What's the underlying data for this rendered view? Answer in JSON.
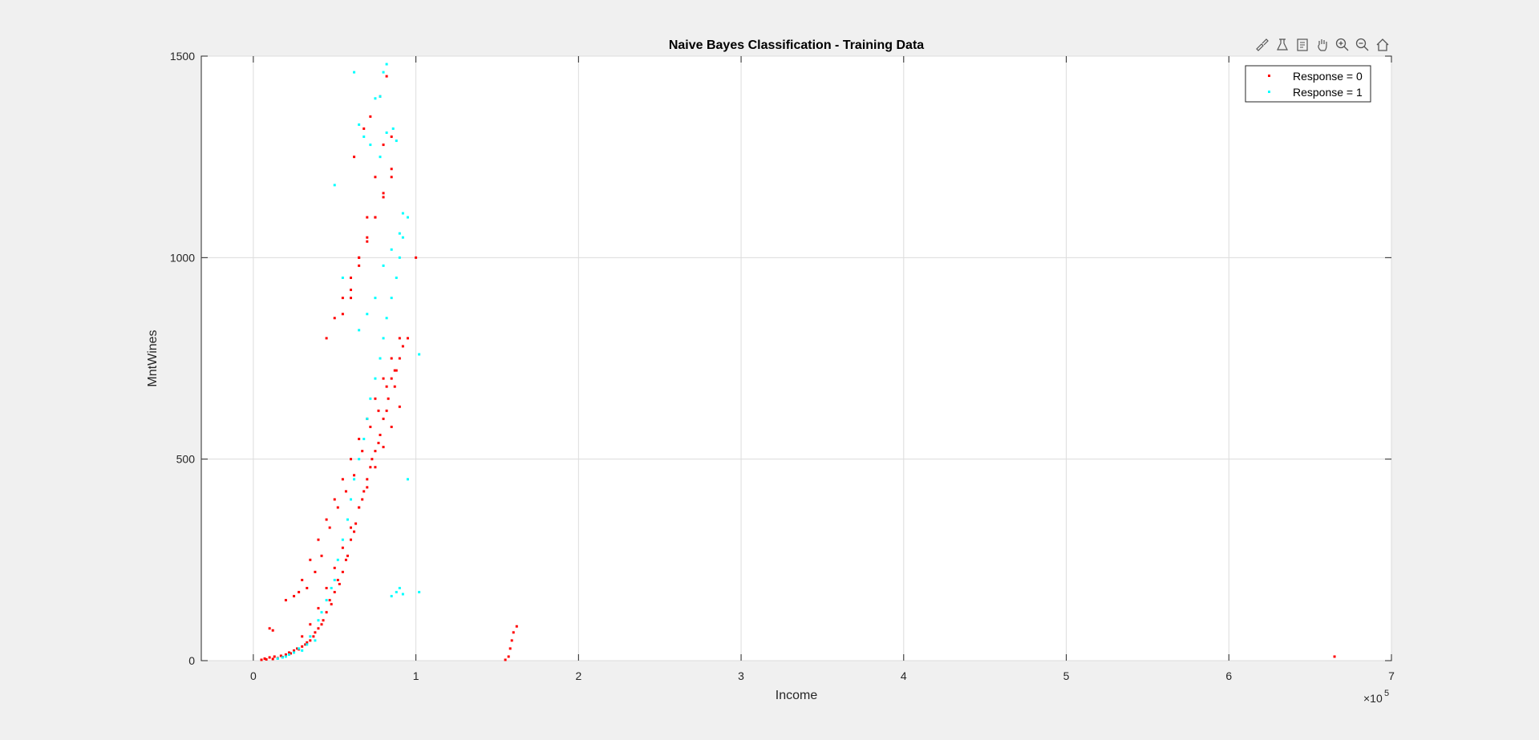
{
  "toolbar": {
    "icons": [
      "brush-icon",
      "data-tips-icon",
      "restore-view-icon",
      "pan-icon",
      "zoom-in-icon",
      "zoom-out-icon",
      "home-icon"
    ]
  },
  "chart_data": {
    "type": "scatter",
    "title": "Naive Bayes Classification - Training Data",
    "xlabel": "Income",
    "ylabel": "MntWines",
    "x_exponent_label": "×10",
    "x_exponent": "5",
    "xlim": [
      -0.32,
      7.0
    ],
    "ylim": [
      0,
      1500
    ],
    "x_scale_note": "x values shown in units of 10^5",
    "xticks": [
      0,
      1,
      2,
      3,
      4,
      5,
      6,
      7
    ],
    "xtick_labels": [
      "0",
      "1",
      "2",
      "3",
      "4",
      "5",
      "6",
      "7"
    ],
    "yticks": [
      0,
      500,
      1000,
      1500
    ],
    "ytick_labels": [
      "0",
      "500",
      "1000",
      "1500"
    ],
    "grid": true,
    "legend_position": "top-right",
    "series": [
      {
        "name": "Response = 0",
        "color": "#ff0000",
        "x": [
          0.05,
          0.07,
          0.08,
          0.1,
          0.12,
          0.13,
          0.15,
          0.17,
          0.18,
          0.2,
          0.22,
          0.23,
          0.25,
          0.27,
          0.28,
          0.3,
          0.32,
          0.33,
          0.35,
          0.37,
          0.38,
          0.4,
          0.42,
          0.43,
          0.45,
          0.47,
          0.48,
          0.5,
          0.52,
          0.53,
          0.55,
          0.57,
          0.58,
          0.6,
          0.62,
          0.63,
          0.65,
          0.67,
          0.68,
          0.7,
          0.72,
          0.73,
          0.75,
          0.77,
          0.78,
          0.8,
          0.82,
          0.83,
          0.85,
          0.87,
          0.88,
          0.9,
          0.92,
          0.95,
          1.0,
          0.1,
          0.12,
          0.2,
          0.25,
          0.28,
          0.3,
          0.33,
          0.35,
          0.38,
          0.4,
          0.42,
          0.45,
          0.47,
          0.5,
          0.52,
          0.55,
          0.57,
          0.6,
          0.62,
          0.65,
          0.67,
          0.7,
          0.72,
          0.75,
          0.77,
          0.8,
          0.82,
          0.85,
          0.87,
          0.9,
          0.3,
          0.35,
          0.4,
          0.45,
          0.5,
          0.55,
          0.6,
          0.65,
          0.7,
          0.75,
          0.8,
          0.85,
          0.9,
          0.45,
          0.5,
          0.55,
          0.6,
          0.65,
          0.7,
          0.75,
          0.8,
          0.85,
          0.55,
          0.6,
          0.65,
          0.7,
          0.75,
          0.8,
          0.85,
          0.6,
          0.65,
          0.7,
          0.75,
          0.8,
          0.85,
          0.62,
          0.68,
          0.72,
          0.78,
          0.82,
          1.55,
          1.57,
          1.58,
          1.59,
          1.6,
          1.62,
          6.65
        ],
        "y": [
          2,
          5,
          3,
          8,
          4,
          10,
          6,
          12,
          9,
          15,
          20,
          18,
          25,
          30,
          28,
          35,
          40,
          45,
          50,
          60,
          70,
          80,
          90,
          100,
          120,
          150,
          140,
          170,
          200,
          190,
          220,
          250,
          260,
          300,
          320,
          340,
          380,
          400,
          420,
          450,
          480,
          500,
          520,
          540,
          560,
          600,
          620,
          650,
          700,
          680,
          720,
          750,
          780,
          800,
          1000,
          80,
          75,
          150,
          160,
          170,
          200,
          180,
          250,
          220,
          300,
          260,
          350,
          330,
          400,
          380,
          450,
          420,
          500,
          460,
          550,
          520,
          600,
          580,
          650,
          620,
          700,
          680,
          750,
          720,
          800,
          60,
          90,
          130,
          180,
          230,
          280,
          330,
          380,
          430,
          480,
          530,
          580,
          630,
          800,
          850,
          900,
          950,
          1000,
          1050,
          1100,
          1150,
          1200,
          860,
          920,
          980,
          1040,
          1100,
          1160,
          1220,
          900,
          1000,
          1100,
          1200,
          1280,
          1300,
          1250,
          1320,
          1350,
          1400,
          1450,
          2,
          10,
          30,
          50,
          70,
          85,
          10
        ]
      },
      {
        "name": "Response = 1",
        "color": "#00ffff",
        "x": [
          0.15,
          0.18,
          0.2,
          0.22,
          0.25,
          0.28,
          0.3,
          0.33,
          0.35,
          0.38,
          0.4,
          0.42,
          0.45,
          0.48,
          0.5,
          0.52,
          0.55,
          0.58,
          0.6,
          0.62,
          0.65,
          0.68,
          0.7,
          0.72,
          0.75,
          0.78,
          0.8,
          0.82,
          0.85,
          0.88,
          0.9,
          0.92,
          0.95,
          1.02,
          0.85,
          0.88,
          0.9,
          0.92,
          1.02,
          0.8,
          0.82,
          0.75,
          0.78,
          0.62,
          0.65,
          0.68,
          0.5,
          0.55,
          0.72,
          0.78,
          0.82,
          0.86,
          0.88,
          0.92,
          0.65,
          0.7,
          0.75,
          0.8,
          0.85,
          0.9,
          0.95
        ],
        "y": [
          5,
          8,
          10,
          15,
          20,
          30,
          25,
          40,
          60,
          50,
          100,
          120,
          150,
          180,
          200,
          250,
          300,
          350,
          400,
          450,
          500,
          550,
          600,
          650,
          700,
          750,
          800,
          850,
          900,
          950,
          1000,
          1050,
          1100,
          760,
          160,
          170,
          180,
          165,
          170,
          1460,
          1480,
          1395,
          1400,
          1460,
          1330,
          1300,
          1180,
          950,
          1280,
          1250,
          1310,
          1320,
          1290,
          1110,
          820,
          860,
          900,
          980,
          1020,
          1060,
          450
        ]
      }
    ]
  }
}
